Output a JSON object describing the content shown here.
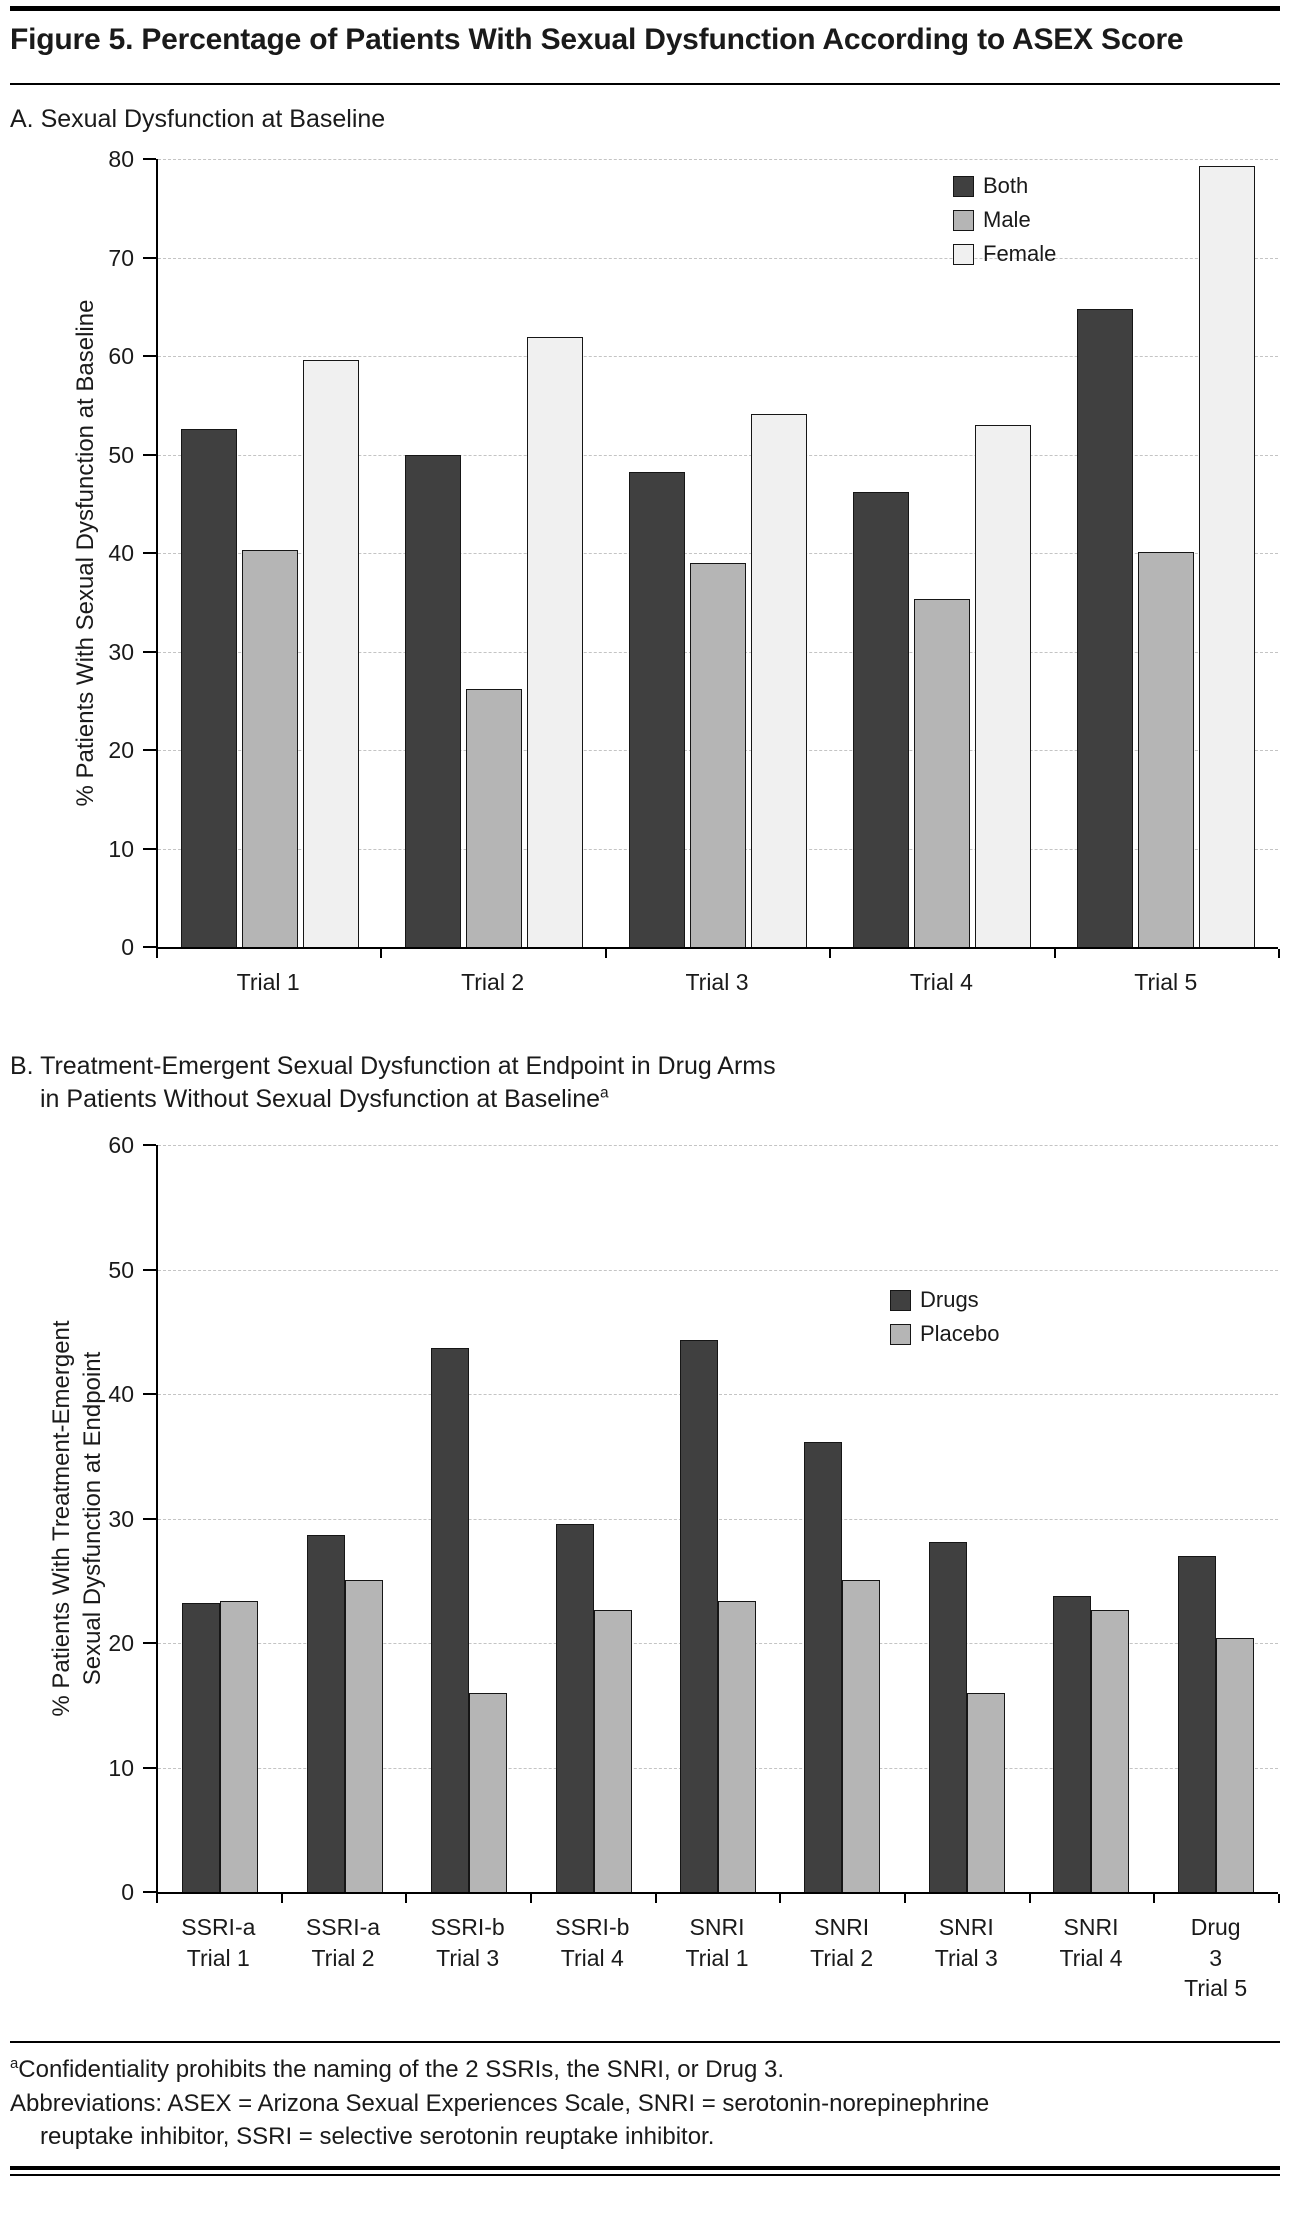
{
  "figure": {
    "title": "Figure 5. Percentage of Patients With Sexual Dysfunction According to ASEX Score"
  },
  "panel_a": {
    "label": "A. Sexual Dysfunction at Baseline"
  },
  "panel_b": {
    "label_line1": "B. Treatment-Emergent Sexual Dysfunction at Endpoint in Drug Arms",
    "label_line2": "in Patients Without Sexual Dysfunction at Baseline",
    "footnote_marker": "a"
  },
  "chart_data": [
    {
      "id": "chart-a",
      "panel": "A",
      "type": "bar",
      "title": "Sexual Dysfunction at Baseline",
      "ylabel": "% Patients With Sexual Dysfunction at Baseline",
      "xlabel": "",
      "ylim": [
        0,
        80
      ],
      "ytick_step": 10,
      "yticks": [
        0,
        10,
        20,
        30,
        40,
        50,
        60,
        70,
        80
      ],
      "grid": true,
      "legend_position": "inside-top-right",
      "categories": [
        "Trial 1",
        "Trial 2",
        "Trial 3",
        "Trial 4",
        "Trial 5"
      ],
      "series": [
        {
          "name": "Both",
          "color": "#404040",
          "values": [
            52.6,
            50.0,
            48.3,
            46.2,
            64.8
          ]
        },
        {
          "name": "Male",
          "color": "#b5b5b5",
          "values": [
            40.3,
            26.2,
            39.0,
            35.4,
            40.1
          ]
        },
        {
          "name": "Female",
          "color": "#f0f0f0",
          "values": [
            59.6,
            62.0,
            54.1,
            53.0,
            79.3
          ]
        }
      ]
    },
    {
      "id": "chart-b",
      "panel": "B",
      "type": "bar",
      "title": "Treatment-Emergent Sexual Dysfunction at Endpoint in Drug Arms in Patients Without Sexual Dysfunction at Baseline",
      "ylabel": "% Patients With Treatment-Emergent\nSexual Dysfunction at Endpoint",
      "xlabel": "",
      "ylim": [
        0,
        60
      ],
      "ytick_step": 10,
      "yticks": [
        0,
        10,
        20,
        30,
        40,
        50,
        60
      ],
      "grid": true,
      "legend_position": "inside-right",
      "categories": [
        "SSRI-a\nTrial 1",
        "SSRI-a\nTrial 2",
        "SSRI-b\nTrial 3",
        "SSRI-b\nTrial 4",
        "SNRI\nTrial 1",
        "SNRI\nTrial 2",
        "SNRI\nTrial 3",
        "SNRI\nTrial 4",
        "Drug 3\nTrial 5"
      ],
      "series": [
        {
          "name": "Drugs",
          "color": "#404040",
          "values": [
            23.2,
            28.7,
            43.7,
            29.6,
            44.4,
            36.2,
            28.1,
            23.8,
            27.0
          ]
        },
        {
          "name": "Placebo",
          "color": "#b5b5b5",
          "values": [
            23.4,
            25.1,
            16.0,
            22.7,
            23.4,
            25.1,
            16.0,
            22.7,
            20.4
          ]
        }
      ]
    }
  ],
  "footnotes": {
    "marker": "a",
    "confidentiality": "Confidentiality prohibits the naming of the 2 SSRIs, the SNRI, or Drug 3.",
    "abbreviations_line1": "Abbreviations: ASEX = Arizona Sexual Experiences Scale, SNRI = serotonin-norepinephrine",
    "abbreviations_line2": "reuptake inhibitor, SSRI = selective serotonin reuptake inhibitor."
  }
}
